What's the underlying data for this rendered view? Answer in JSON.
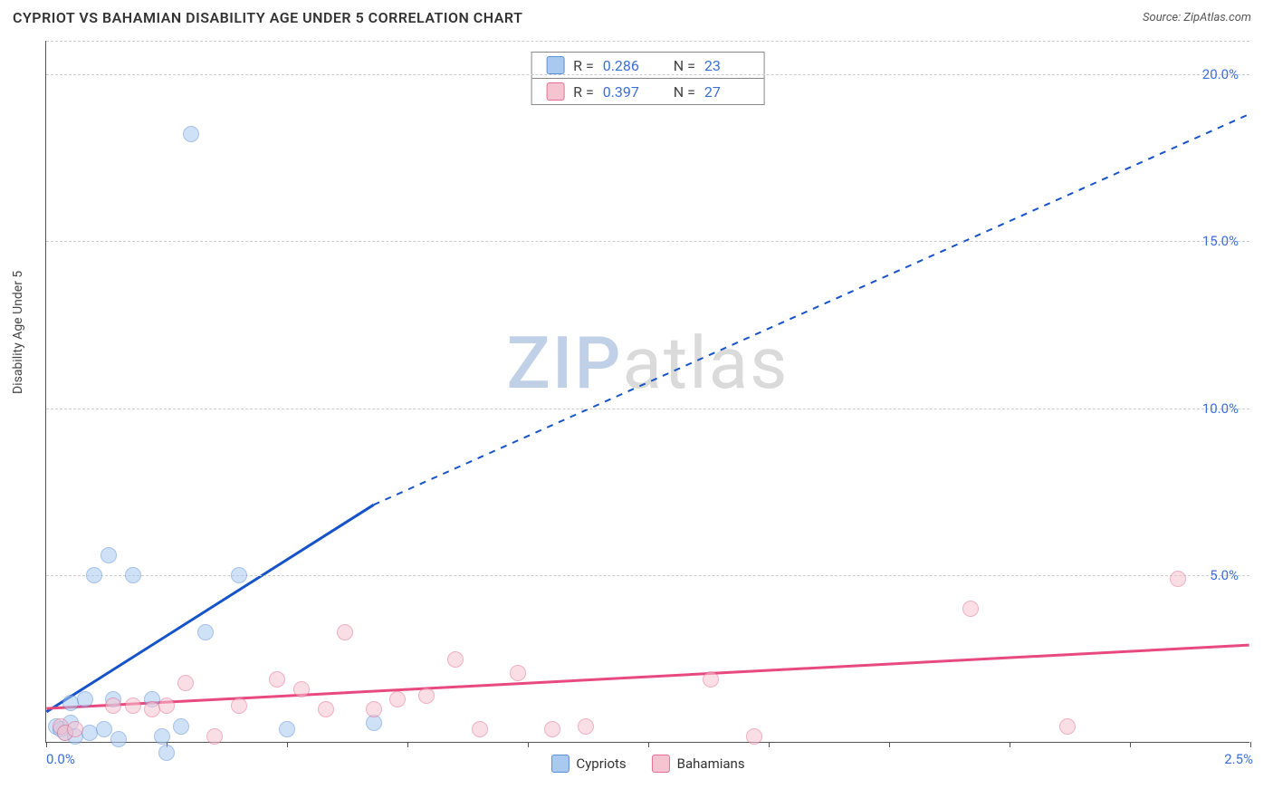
{
  "title": "CYPRIOT VS BAHAMIAN DISABILITY AGE UNDER 5 CORRELATION CHART",
  "source": "Source: ZipAtlas.com",
  "ylabel": "Disability Age Under 5",
  "watermark": {
    "part1": "ZIP",
    "part2": "atlas"
  },
  "chart": {
    "type": "scatter",
    "xlim": [
      0.0,
      2.5
    ],
    "ylim": [
      0.0,
      21.0
    ],
    "ytick_step": 5.0,
    "yticks": [
      5.0,
      10.0,
      15.0,
      20.0
    ],
    "ytick_labels": [
      "5.0%",
      "10.0%",
      "15.0%",
      "20.0%"
    ],
    "xtick_positions": [
      0.0,
      0.25,
      0.5,
      0.75,
      1.0,
      1.25,
      1.5,
      1.75,
      2.0,
      2.25,
      2.5
    ],
    "xtick_labels_shown": {
      "0.0": "0.0%",
      "2.5": "2.5%"
    },
    "grid_color": "#cccccc",
    "axis_color": "#555555",
    "tick_label_color": "#3b6fd6",
    "background_color": "#ffffff",
    "marker_size": 18,
    "marker_opacity": 0.55
  },
  "series": [
    {
      "name": "Cypriots",
      "color_fill": "#a9c9ef",
      "color_stroke": "#5b8fd6",
      "trend_color": "#1653c9",
      "R": "0.286",
      "N": "23",
      "trend": {
        "x1": 0.0,
        "y1": 0.9,
        "x2": 0.68,
        "y2": 7.1,
        "x2_dash_end": 2.5,
        "y2_dash_end": 18.8
      },
      "points": [
        {
          "x": 0.02,
          "y": 0.5
        },
        {
          "x": 0.03,
          "y": 0.4
        },
        {
          "x": 0.04,
          "y": 0.3
        },
        {
          "x": 0.05,
          "y": 0.6
        },
        {
          "x": 0.05,
          "y": 1.2
        },
        {
          "x": 0.06,
          "y": 0.2
        },
        {
          "x": 0.08,
          "y": 1.3
        },
        {
          "x": 0.09,
          "y": 0.3
        },
        {
          "x": 0.1,
          "y": 5.0
        },
        {
          "x": 0.12,
          "y": 0.4
        },
        {
          "x": 0.13,
          "y": 5.6
        },
        {
          "x": 0.14,
          "y": 1.3
        },
        {
          "x": 0.15,
          "y": 0.1
        },
        {
          "x": 0.18,
          "y": 5.0
        },
        {
          "x": 0.22,
          "y": 1.3
        },
        {
          "x": 0.24,
          "y": 0.2
        },
        {
          "x": 0.25,
          "y": -0.3
        },
        {
          "x": 0.28,
          "y": 0.5
        },
        {
          "x": 0.3,
          "y": 18.2
        },
        {
          "x": 0.33,
          "y": 3.3
        },
        {
          "x": 0.4,
          "y": 5.0
        },
        {
          "x": 0.5,
          "y": 0.4
        },
        {
          "x": 0.68,
          "y": 0.6
        }
      ]
    },
    {
      "name": "Bahamians",
      "color_fill": "#f6c4d0",
      "color_stroke": "#e56f94",
      "trend_color": "#e84a7f",
      "R": "0.397",
      "N": "27",
      "trend": {
        "x1": 0.0,
        "y1": 1.0,
        "x2": 2.5,
        "y2": 2.9,
        "x2_dash_end": 2.5,
        "y2_dash_end": 2.9
      },
      "points": [
        {
          "x": 0.03,
          "y": 0.5
        },
        {
          "x": 0.04,
          "y": 0.3
        },
        {
          "x": 0.06,
          "y": 0.4
        },
        {
          "x": 0.14,
          "y": 1.1
        },
        {
          "x": 0.18,
          "y": 1.1
        },
        {
          "x": 0.22,
          "y": 1.0
        },
        {
          "x": 0.25,
          "y": 1.1
        },
        {
          "x": 0.29,
          "y": 1.8
        },
        {
          "x": 0.35,
          "y": 0.2
        },
        {
          "x": 0.4,
          "y": 1.1
        },
        {
          "x": 0.48,
          "y": 1.9
        },
        {
          "x": 0.53,
          "y": 1.6
        },
        {
          "x": 0.58,
          "y": 1.0
        },
        {
          "x": 0.62,
          "y": 3.3
        },
        {
          "x": 0.68,
          "y": 1.0
        },
        {
          "x": 0.73,
          "y": 1.3
        },
        {
          "x": 0.79,
          "y": 1.4
        },
        {
          "x": 0.85,
          "y": 2.5
        },
        {
          "x": 0.9,
          "y": 0.4
        },
        {
          "x": 0.98,
          "y": 2.1
        },
        {
          "x": 1.05,
          "y": 0.4
        },
        {
          "x": 1.12,
          "y": 0.5
        },
        {
          "x": 1.38,
          "y": 1.9
        },
        {
          "x": 1.47,
          "y": 0.2
        },
        {
          "x": 1.92,
          "y": 4.0
        },
        {
          "x": 2.12,
          "y": 0.5
        },
        {
          "x": 2.35,
          "y": 4.9
        }
      ]
    }
  ],
  "legend_bottom": [
    {
      "label": "Cypriots",
      "fill": "#a9c9ef",
      "stroke": "#5b8fd6"
    },
    {
      "label": "Bahamians",
      "fill": "#f6c4d0",
      "stroke": "#e56f94"
    }
  ]
}
